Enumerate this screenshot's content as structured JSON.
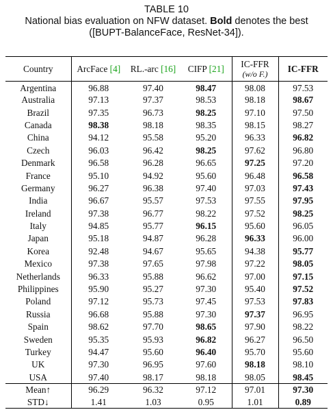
{
  "caption": {
    "label": "TABLE 10",
    "line1_pre": "National bias evaluation on NFW dataset. ",
    "line1_bold": "Bold",
    "line1_post": " denotes the best",
    "line2": "([BUPT-BalanceFace, ResNet-34])."
  },
  "table": {
    "headers": {
      "country": "Country",
      "arcface": "ArcFace ",
      "arcface_cite": "[4]",
      "rlarc": "RL.-arc ",
      "rlarc_cite": "[16]",
      "cifp": "CIFP ",
      "cifp_cite": "[21]",
      "icffr_wo_main": "IC-FFR",
      "icffr_wo_sub": "(w/o F.)",
      "icffr": "IC-FFR"
    },
    "rows": [
      {
        "country": "Argentina",
        "values": [
          "96.88",
          "97.40",
          "98.47",
          "98.08",
          "97.53"
        ],
        "bold": [
          2
        ]
      },
      {
        "country": "Australia",
        "values": [
          "97.13",
          "97.37",
          "98.53",
          "98.18",
          "98.67"
        ],
        "bold": [
          4
        ]
      },
      {
        "country": "Brazil",
        "values": [
          "97.35",
          "96.73",
          "98.25",
          "97.10",
          "97.50"
        ],
        "bold": [
          2
        ]
      },
      {
        "country": "Canada",
        "values": [
          "98.38",
          "98.18",
          "98.35",
          "98.15",
          "98.27"
        ],
        "bold": [
          0
        ]
      },
      {
        "country": "China",
        "values": [
          "94.12",
          "95.58",
          "95.20",
          "96.33",
          "96.82"
        ],
        "bold": [
          4
        ]
      },
      {
        "country": "Czech",
        "values": [
          "96.03",
          "96.42",
          "98.25",
          "97.62",
          "96.80"
        ],
        "bold": [
          2
        ]
      },
      {
        "country": "Denmark",
        "values": [
          "96.58",
          "96.28",
          "96.65",
          "97.25",
          "97.20"
        ],
        "bold": [
          3
        ]
      },
      {
        "country": "France",
        "values": [
          "95.10",
          "94.92",
          "95.60",
          "96.48",
          "96.58"
        ],
        "bold": [
          4
        ]
      },
      {
        "country": "Germany",
        "values": [
          "96.27",
          "96.38",
          "97.40",
          "97.03",
          "97.43"
        ],
        "bold": [
          4
        ]
      },
      {
        "country": "India",
        "values": [
          "96.67",
          "95.57",
          "97.53",
          "97.55",
          "97.95"
        ],
        "bold": [
          4
        ]
      },
      {
        "country": "Ireland",
        "values": [
          "97.38",
          "96.77",
          "98.22",
          "97.52",
          "98.25"
        ],
        "bold": [
          4
        ]
      },
      {
        "country": "Italy",
        "values": [
          "94.85",
          "95.77",
          "96.15",
          "95.60",
          "96.05"
        ],
        "bold": [
          2
        ]
      },
      {
        "country": "Japan",
        "values": [
          "95.18",
          "94.87",
          "96.28",
          "96.33",
          "96.00"
        ],
        "bold": [
          3
        ]
      },
      {
        "country": "Korea",
        "values": [
          "92.48",
          "94.67",
          "95.65",
          "94.38",
          "95.77"
        ],
        "bold": [
          4
        ]
      },
      {
        "country": "Mexico",
        "values": [
          "97.38",
          "97.65",
          "97.98",
          "97.22",
          "98.05"
        ],
        "bold": [
          4
        ]
      },
      {
        "country": "Netherlands",
        "values": [
          "96.33",
          "95.88",
          "96.62",
          "97.00",
          "97.15"
        ],
        "bold": [
          4
        ]
      },
      {
        "country": "Philippines",
        "values": [
          "95.90",
          "95.27",
          "97.30",
          "95.40",
          "97.52"
        ],
        "bold": [
          4
        ]
      },
      {
        "country": "Poland",
        "values": [
          "97.12",
          "95.73",
          "97.45",
          "97.53",
          "97.83"
        ],
        "bold": [
          4
        ]
      },
      {
        "country": "Russia",
        "values": [
          "96.68",
          "95.88",
          "97.30",
          "97.37",
          "96.95"
        ],
        "bold": [
          3
        ]
      },
      {
        "country": "Spain",
        "values": [
          "98.62",
          "97.70",
          "98.65",
          "97.90",
          "98.22"
        ],
        "bold": [
          2
        ]
      },
      {
        "country": "Sweden",
        "values": [
          "95.35",
          "95.93",
          "96.82",
          "96.27",
          "96.50"
        ],
        "bold": [
          2
        ]
      },
      {
        "country": "Turkey",
        "values": [
          "94.47",
          "95.60",
          "96.40",
          "95.70",
          "95.60"
        ],
        "bold": [
          2
        ]
      },
      {
        "country": "UK",
        "values": [
          "97.30",
          "96.95",
          "97.60",
          "98.18",
          "98.10"
        ],
        "bold": [
          3
        ]
      },
      {
        "country": "USA",
        "values": [
          "97.40",
          "98.17",
          "98.18",
          "98.05",
          "98.45"
        ],
        "bold": [
          4
        ]
      }
    ],
    "summary": [
      {
        "label": "Mean↑",
        "values": [
          "96.29",
          "96.32",
          "97.12",
          "97.01",
          "97.30"
        ],
        "bold": [
          4
        ]
      },
      {
        "label": "STD↓",
        "values": [
          "1.41",
          "1.03",
          "0.95",
          "1.01",
          "0.89"
        ],
        "bold": [
          4
        ]
      }
    ]
  }
}
